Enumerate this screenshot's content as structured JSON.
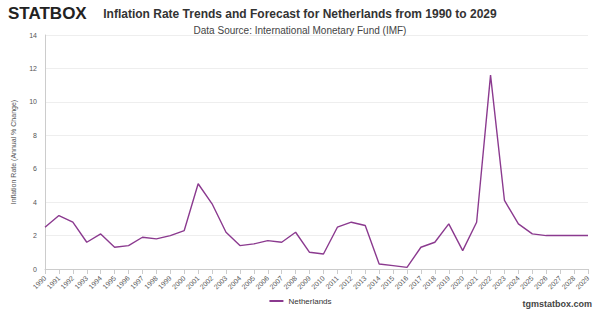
{
  "chart_data": {
    "type": "line",
    "title": "Inflation Rate Trends and Forecast for Netherlands from 1990 to 2029",
    "subtitle": "Data Source: International Monetary Fund (IMF)",
    "y_label": "Inflation Rate (Annual % Change)",
    "annotations": [
      "STATBOX",
      "tgmstatbox.com"
    ],
    "categories": [
      "1990",
      "1991",
      "1992",
      "1993",
      "1994",
      "1995",
      "1996",
      "1997",
      "1998",
      "1999",
      "2000",
      "2001",
      "2002",
      "2003",
      "2004",
      "2005",
      "2006",
      "2007",
      "2008",
      "2009",
      "2010",
      "2011",
      "2012",
      "2013",
      "2014",
      "2015",
      "2016",
      "2017",
      "2018",
      "2019",
      "2020",
      "2021",
      "2022",
      "2023",
      "2024",
      "2025",
      "2026",
      "2027",
      "2028",
      "2029"
    ],
    "series": [
      {
        "name": "Netherlands",
        "color": "#8b3a8f",
        "values": [
          2.5,
          3.2,
          2.8,
          1.6,
          2.1,
          1.3,
          1.4,
          1.9,
          1.8,
          2.0,
          2.3,
          5.1,
          3.9,
          2.2,
          1.4,
          1.5,
          1.7,
          1.6,
          2.2,
          1.0,
          0.9,
          2.5,
          2.8,
          2.6,
          0.3,
          0.2,
          0.1,
          1.3,
          1.6,
          2.7,
          1.1,
          2.8,
          11.6,
          4.1,
          2.7,
          2.1,
          2.0,
          2.0,
          2.0,
          2.0
        ]
      }
    ],
    "ylim": [
      0,
      14
    ],
    "yticks": [
      0,
      2,
      4,
      6,
      8,
      10,
      12,
      14
    ],
    "grid": true,
    "legend": "bottom"
  }
}
